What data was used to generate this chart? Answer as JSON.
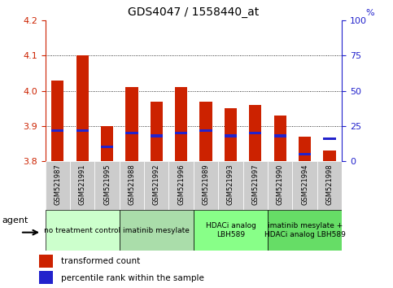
{
  "title": "GDS4047 / 1558440_at",
  "samples": [
    "GSM521987",
    "GSM521991",
    "GSM521995",
    "GSM521988",
    "GSM521992",
    "GSM521996",
    "GSM521989",
    "GSM521993",
    "GSM521997",
    "GSM521990",
    "GSM521994",
    "GSM521998"
  ],
  "bar_values": [
    4.03,
    4.1,
    3.9,
    4.01,
    3.97,
    4.01,
    3.97,
    3.95,
    3.96,
    3.93,
    3.87,
    3.83
  ],
  "bar_base": 3.8,
  "percentile_values": [
    22,
    22,
    10,
    20,
    18,
    20,
    22,
    18,
    20,
    18,
    5,
    16
  ],
  "bar_color": "#cc2200",
  "percentile_color": "#2222cc",
  "ylim": [
    3.8,
    4.2
  ],
  "y2lim": [
    0,
    100
  ],
  "yticks": [
    3.8,
    3.9,
    4.0,
    4.1,
    4.2
  ],
  "y2ticks": [
    0,
    25,
    50,
    75,
    100
  ],
  "groups": [
    {
      "label": "no treatment control",
      "start": 0,
      "end": 3,
      "color": "#ccffcc"
    },
    {
      "label": "imatinib mesylate",
      "start": 3,
      "end": 6,
      "color": "#aaddaa"
    },
    {
      "label": "HDACi analog\nLBH589",
      "start": 6,
      "end": 9,
      "color": "#88ff88"
    },
    {
      "label": "imatinib mesylate +\nHDACi analog LBH589",
      "start": 9,
      "end": 12,
      "color": "#66dd66"
    }
  ],
  "agent_label": "agent",
  "legend_red": "transformed count",
  "legend_blue": "percentile rank within the sample",
  "bar_width": 0.5,
  "tick_label_color_left": "#cc2200",
  "tick_label_color_right": "#2222cc",
  "title_fontsize": 10,
  "xlabel_bg": "#cccccc"
}
